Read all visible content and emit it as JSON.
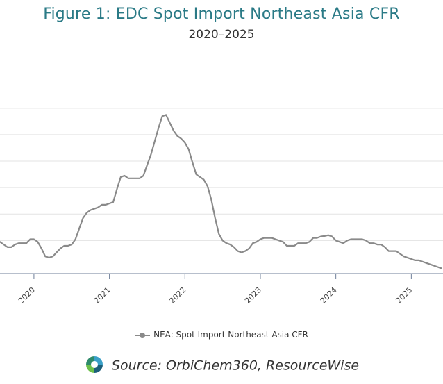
{
  "chart_data": {
    "type": "line",
    "title": "Figure 1: EDC Spot Import Northeast Asia CFR",
    "subtitle": "2020–2025",
    "xlabel": "",
    "ylabel": "",
    "x_tick_labels": [
      "2020",
      "2021",
      "2022",
      "2023",
      "2024",
      "2025"
    ],
    "grid": true,
    "legend_position": "bottom-center",
    "series": [
      {
        "name": "NEA: Spot Import Northeast Asia CFR",
        "color": "#8a8a8a",
        "x": [
          2019.55,
          2019.6,
          2019.65,
          2019.7,
          2019.75,
          2019.8,
          2019.85,
          2019.9,
          2019.95,
          2020.0,
          2020.05,
          2020.1,
          2020.15,
          2020.2,
          2020.25,
          2020.3,
          2020.35,
          2020.4,
          2020.45,
          2020.5,
          2020.55,
          2020.6,
          2020.65,
          2020.7,
          2020.75,
          2020.8,
          2020.85,
          2020.9,
          2020.95,
          2021.0,
          2021.05,
          2021.1,
          2021.15,
          2021.2,
          2021.25,
          2021.3,
          2021.35,
          2021.4,
          2021.45,
          2021.5,
          2021.55,
          2021.6,
          2021.65,
          2021.7,
          2021.75,
          2021.8,
          2021.85,
          2021.9,
          2021.95,
          2022.0,
          2022.05,
          2022.1,
          2022.15,
          2022.2,
          2022.25,
          2022.3,
          2022.35,
          2022.4,
          2022.45,
          2022.5,
          2022.55,
          2022.6,
          2022.65,
          2022.7,
          2022.75,
          2022.8,
          2022.85,
          2022.9,
          2022.95,
          2023.0,
          2023.05,
          2023.1,
          2023.15,
          2023.2,
          2023.25,
          2023.3,
          2023.35,
          2023.4,
          2023.45,
          2023.5,
          2023.55,
          2023.6,
          2023.65,
          2023.7,
          2023.75,
          2023.8,
          2023.85,
          2023.9,
          2023.95,
          2024.0,
          2024.05,
          2024.1,
          2024.15,
          2024.2,
          2024.25,
          2024.3,
          2024.35,
          2024.4,
          2024.45,
          2024.5,
          2024.55,
          2024.6,
          2024.65,
          2024.7,
          2024.75,
          2024.8,
          2024.85,
          2024.9,
          2024.95,
          2025.0,
          2025.05,
          2025.1,
          2025.15,
          2025.2,
          2025.25,
          2025.3,
          2025.35,
          2025.4
        ],
        "y": [
          1.2,
          1.1,
          1.0,
          1.0,
          1.1,
          1.15,
          1.15,
          1.15,
          1.3,
          1.3,
          1.2,
          0.95,
          0.65,
          0.6,
          0.65,
          0.8,
          0.95,
          1.05,
          1.05,
          1.1,
          1.3,
          1.7,
          2.1,
          2.3,
          2.4,
          2.45,
          2.5,
          2.6,
          2.6,
          2.65,
          2.7,
          3.2,
          3.65,
          3.7,
          3.6,
          3.6,
          3.6,
          3.6,
          3.7,
          4.1,
          4.5,
          5.0,
          5.5,
          5.95,
          6.0,
          5.7,
          5.4,
          5.2,
          5.1,
          4.95,
          4.7,
          4.2,
          3.75,
          3.65,
          3.55,
          3.3,
          2.8,
          2.1,
          1.5,
          1.25,
          1.15,
          1.1,
          1.0,
          0.85,
          0.8,
          0.85,
          0.95,
          1.15,
          1.2,
          1.3,
          1.35,
          1.35,
          1.35,
          1.3,
          1.25,
          1.2,
          1.05,
          1.05,
          1.05,
          1.15,
          1.15,
          1.15,
          1.2,
          1.35,
          1.35,
          1.4,
          1.42,
          1.45,
          1.4,
          1.25,
          1.2,
          1.15,
          1.25,
          1.3,
          1.3,
          1.3,
          1.3,
          1.25,
          1.15,
          1.15,
          1.1,
          1.1,
          1.0,
          0.85,
          0.85,
          0.85,
          0.75,
          0.65,
          0.6,
          0.55,
          0.5,
          0.5,
          0.45,
          0.4,
          0.35,
          0.3,
          0.25,
          0.2
        ]
      }
    ]
  },
  "legend": {
    "label": "NEA: Spot Import Northeast Asia CFR"
  },
  "source": {
    "text": "Source: OrbiChem360, ResourceWise",
    "logo_icon": "orbichem-logo"
  }
}
